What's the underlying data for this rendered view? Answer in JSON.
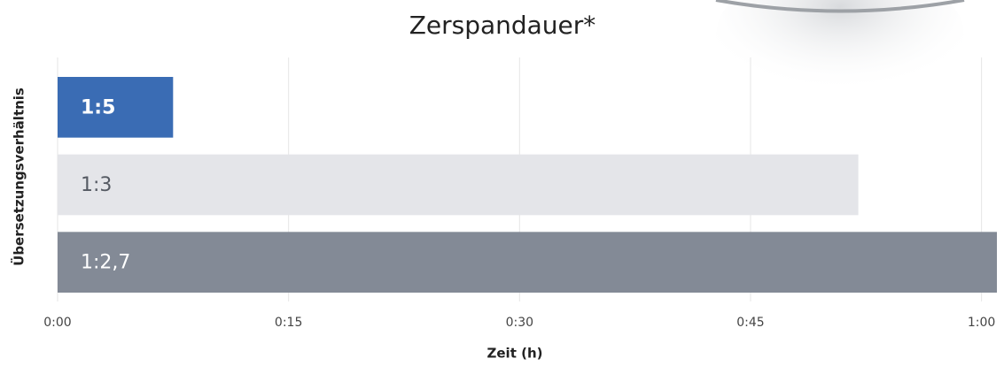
{
  "chart_data": {
    "type": "bar",
    "orientation": "horizontal",
    "title": "Zerspandauer*",
    "x_label": "Zeit (h)",
    "y_label": "Übersetzungsverhältnis",
    "categories": [
      "1:5",
      "1:3",
      "1:2,7"
    ],
    "values": [
      7.5,
      52,
      61
    ],
    "colors": [
      "#3a6cb4",
      "#e4e5e9",
      "#838a96"
    ],
    "label_colors": [
      "#ffffff",
      "#555a63",
      "#ffffff"
    ],
    "xlim": [
      0,
      61
    ],
    "xticks": [
      {
        "value": 0,
        "label": "0:00"
      },
      {
        "value": 15,
        "label": "0:15"
      },
      {
        "value": 30,
        "label": "0:30"
      },
      {
        "value": 45,
        "label": "0:45"
      },
      {
        "value": 60,
        "label": "1:00"
      }
    ],
    "grid": true
  }
}
